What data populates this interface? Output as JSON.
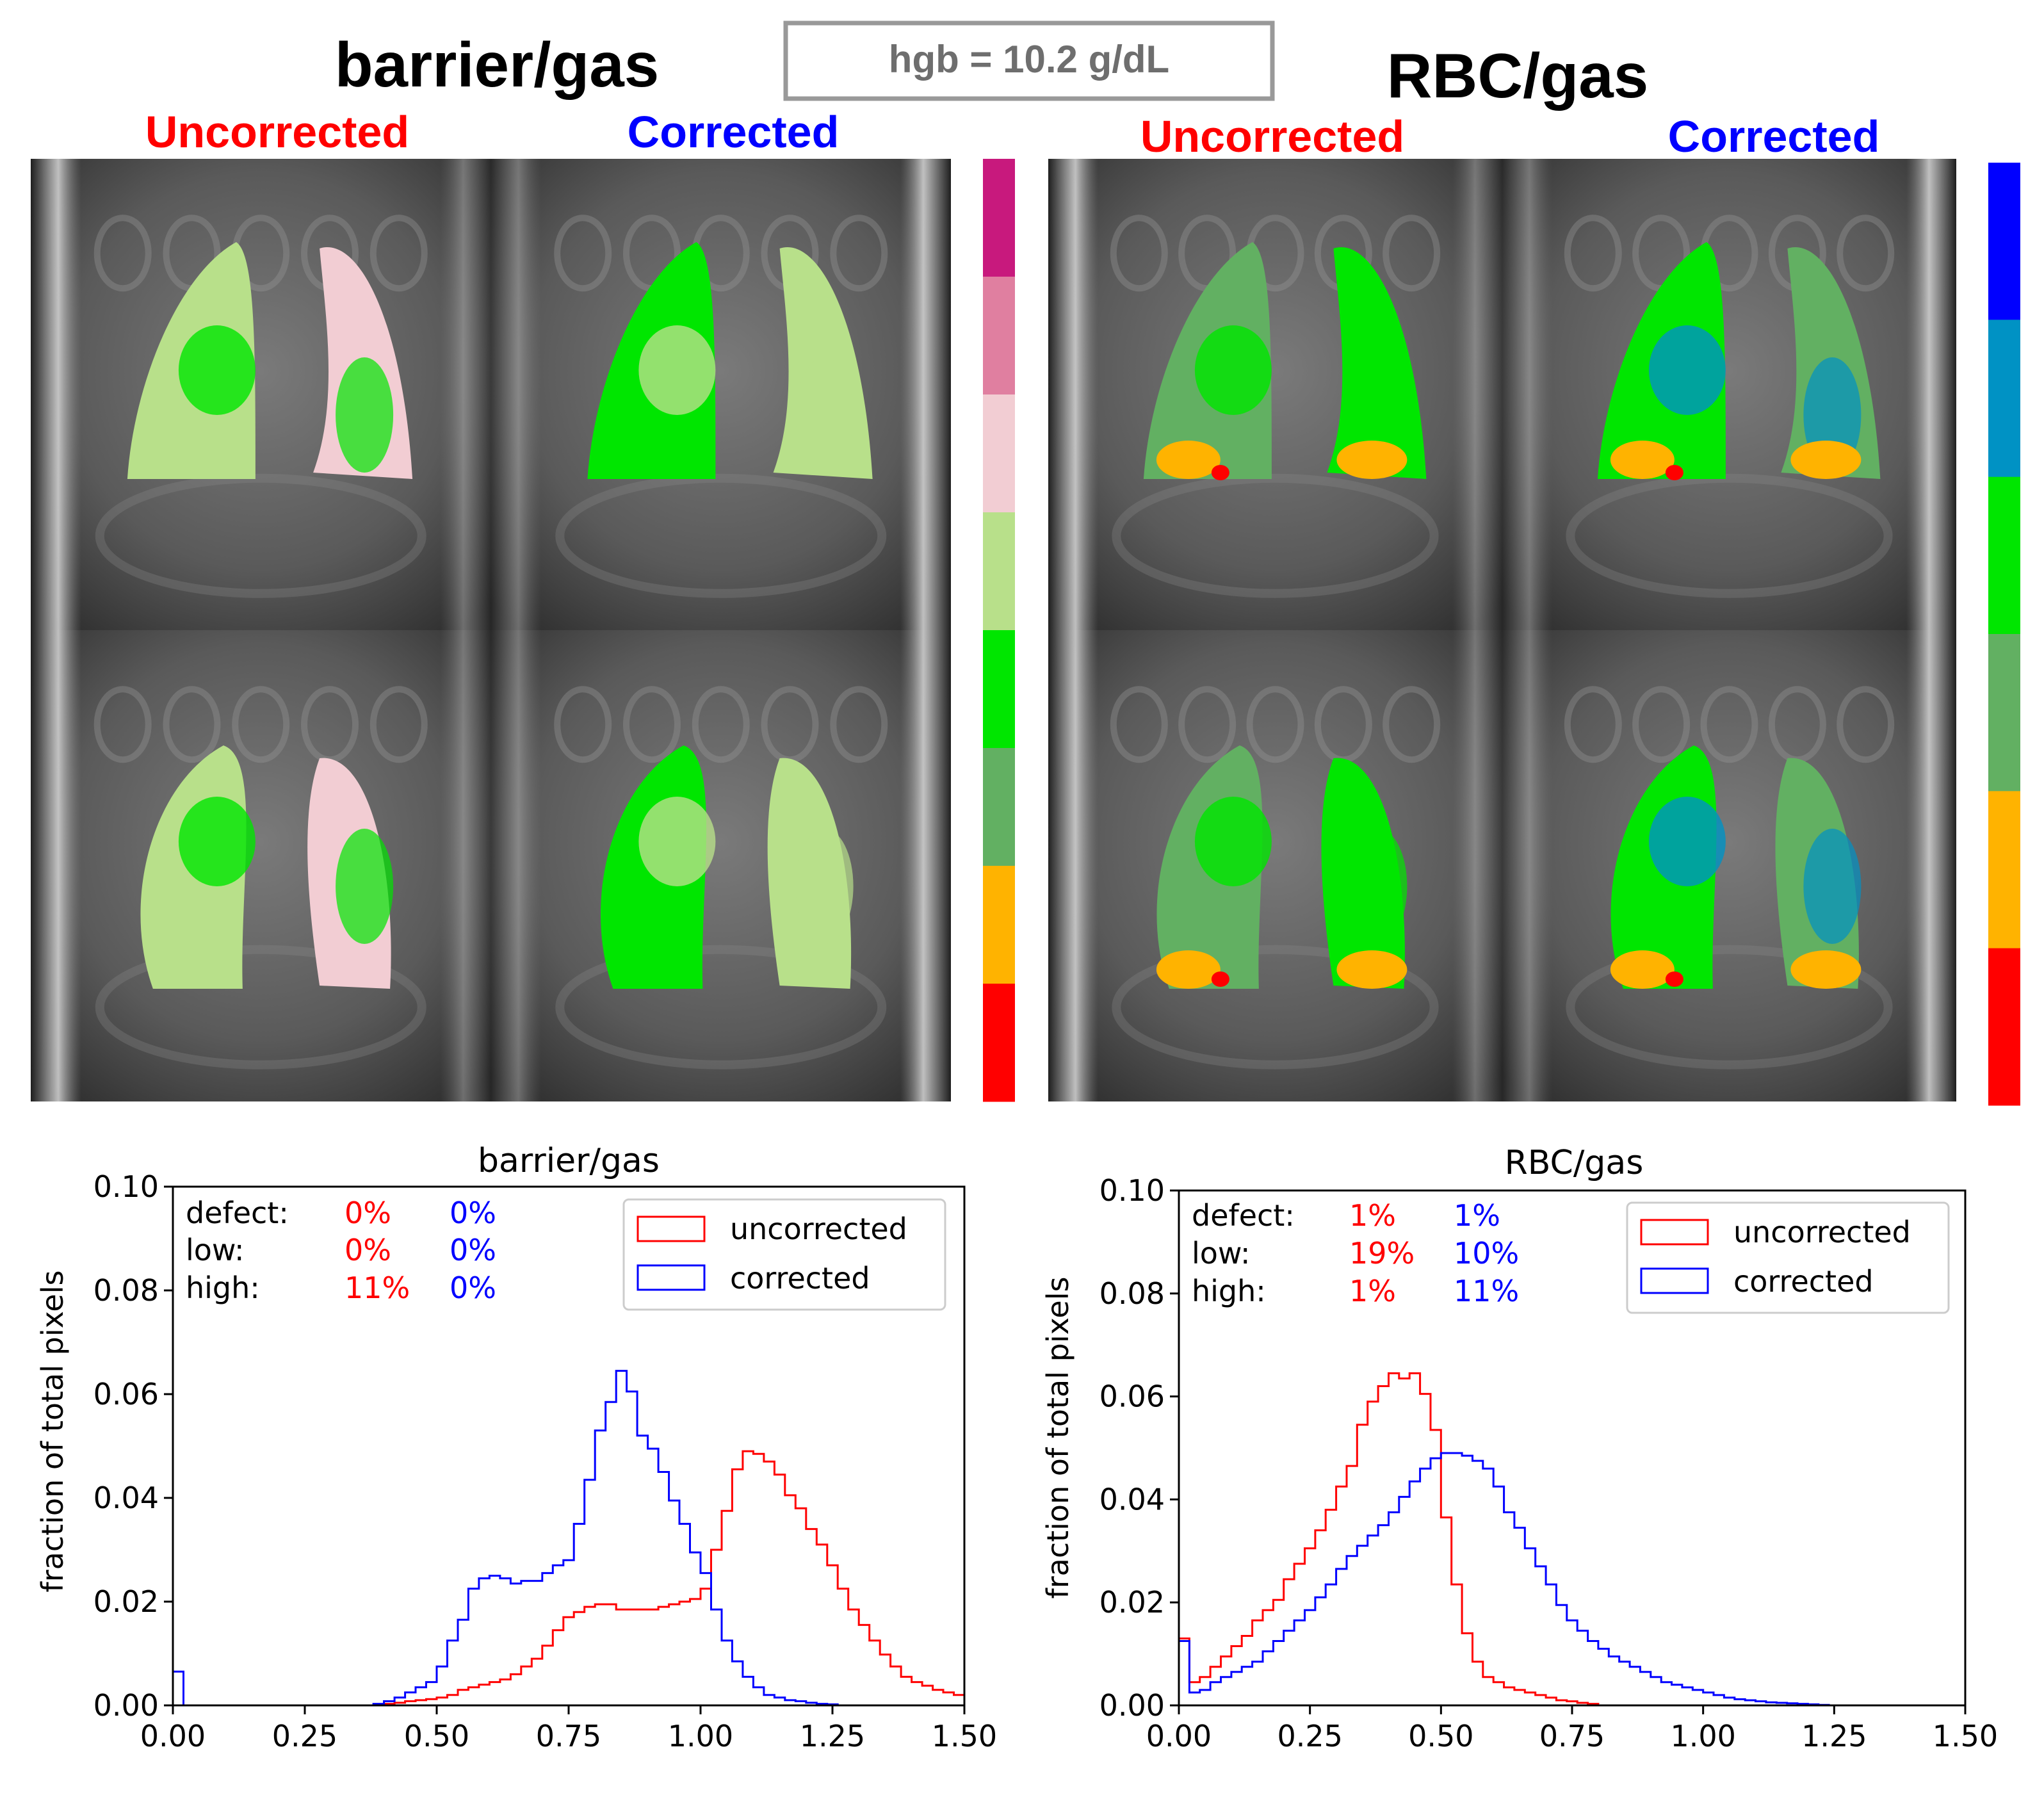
{
  "header": {
    "hgb_box": "hgb = 10.2 g/dL",
    "left_title": "barrier/gas",
    "right_title": "RBC/gas",
    "uncorrected_label": "Uncorrected",
    "corrected_label": "Corrected",
    "uncorrected_color": "#ff0000",
    "corrected_color": "#0000ff"
  },
  "colorbars": {
    "barrier": [
      "#c8197d",
      "#e07fa0",
      "#f2cdd3",
      "#b8e08a",
      "#00e600",
      "#62b062",
      "#ffb300",
      "#ff0000"
    ],
    "rbc": [
      "#0000ff",
      "#0092c4",
      "#00e600",
      "#62b062",
      "#ffb300",
      "#ff0000"
    ]
  },
  "chart_data": [
    {
      "type": "histogram",
      "title": "barrier/gas",
      "ylabel": "fraction of total pixels",
      "xlim": [
        0,
        1.5
      ],
      "ylim": [
        0,
        0.1
      ],
      "xticks": [
        "0.00",
        "0.25",
        "0.50",
        "0.75",
        "1.00",
        "1.25",
        "1.50"
      ],
      "yticks": [
        "0.00",
        "0.02",
        "0.04",
        "0.06",
        "0.08",
        "0.10"
      ],
      "stats": {
        "labels": [
          "defect:",
          "low:",
          "high:"
        ],
        "uncorrected": [
          "0%",
          "0%",
          "11%"
        ],
        "corrected": [
          "0%",
          "0%",
          "0%"
        ]
      },
      "legend": {
        "location": "top-right",
        "entries": [
          "uncorrected",
          "corrected"
        ]
      },
      "series": [
        {
          "name": "uncorrected",
          "color": "#ff0000",
          "points": [
            [
              0.0,
              0
            ],
            [
              0.38,
              0
            ],
            [
              0.4,
              0.0003
            ],
            [
              0.42,
              0.0005
            ],
            [
              0.44,
              0.0008
            ],
            [
              0.46,
              0.001
            ],
            [
              0.48,
              0.0012
            ],
            [
              0.5,
              0.0015
            ],
            [
              0.52,
              0.002
            ],
            [
              0.54,
              0.003
            ],
            [
              0.56,
              0.0035
            ],
            [
              0.58,
              0.004
            ],
            [
              0.6,
              0.0045
            ],
            [
              0.62,
              0.005
            ],
            [
              0.64,
              0.006
            ],
            [
              0.66,
              0.0075
            ],
            [
              0.68,
              0.009
            ],
            [
              0.7,
              0.0115
            ],
            [
              0.72,
              0.0145
            ],
            [
              0.74,
              0.017
            ],
            [
              0.76,
              0.018
            ],
            [
              0.78,
              0.019
            ],
            [
              0.8,
              0.0195
            ],
            [
              0.82,
              0.0195
            ],
            [
              0.84,
              0.0185
            ],
            [
              0.86,
              0.0185
            ],
            [
              0.88,
              0.0185
            ],
            [
              0.9,
              0.0185
            ],
            [
              0.92,
              0.019
            ],
            [
              0.94,
              0.0195
            ],
            [
              0.96,
              0.02
            ],
            [
              0.98,
              0.0205
            ],
            [
              1.0,
              0.0225
            ],
            [
              1.02,
              0.03
            ],
            [
              1.04,
              0.0375
            ],
            [
              1.06,
              0.0455
            ],
            [
              1.08,
              0.049
            ],
            [
              1.1,
              0.0485
            ],
            [
              1.12,
              0.047
            ],
            [
              1.14,
              0.0445
            ],
            [
              1.16,
              0.0405
            ],
            [
              1.18,
              0.038
            ],
            [
              1.2,
              0.034
            ],
            [
              1.22,
              0.031
            ],
            [
              1.24,
              0.027
            ],
            [
              1.26,
              0.0225
            ],
            [
              1.28,
              0.0185
            ],
            [
              1.3,
              0.0155
            ],
            [
              1.32,
              0.0125
            ],
            [
              1.34,
              0.0098
            ],
            [
              1.36,
              0.0075
            ],
            [
              1.38,
              0.0055
            ],
            [
              1.4,
              0.0045
            ],
            [
              1.42,
              0.0038
            ],
            [
              1.44,
              0.003
            ],
            [
              1.46,
              0.0025
            ],
            [
              1.48,
              0.002
            ],
            [
              1.5,
              0.002
            ]
          ]
        },
        {
          "name": "corrected",
          "color": "#0000ff",
          "points": [
            [
              0.0,
              0.0065
            ],
            [
              0.02,
              0
            ],
            [
              0.36,
              0
            ],
            [
              0.38,
              0.0003
            ],
            [
              0.4,
              0.0008
            ],
            [
              0.42,
              0.0015
            ],
            [
              0.44,
              0.0025
            ],
            [
              0.46,
              0.0035
            ],
            [
              0.48,
              0.0045
            ],
            [
              0.5,
              0.0075
            ],
            [
              0.52,
              0.0125
            ],
            [
              0.54,
              0.0165
            ],
            [
              0.56,
              0.0225
            ],
            [
              0.58,
              0.0245
            ],
            [
              0.6,
              0.025
            ],
            [
              0.62,
              0.0245
            ],
            [
              0.64,
              0.0235
            ],
            [
              0.66,
              0.024
            ],
            [
              0.68,
              0.024
            ],
            [
              0.7,
              0.0255
            ],
            [
              0.72,
              0.027
            ],
            [
              0.74,
              0.028
            ],
            [
              0.76,
              0.035
            ],
            [
              0.78,
              0.0435
            ],
            [
              0.8,
              0.053
            ],
            [
              0.82,
              0.0585
            ],
            [
              0.84,
              0.0645
            ],
            [
              0.86,
              0.0605
            ],
            [
              0.88,
              0.052
            ],
            [
              0.9,
              0.0495
            ],
            [
              0.92,
              0.045
            ],
            [
              0.94,
              0.0395
            ],
            [
              0.96,
              0.035
            ],
            [
              0.98,
              0.0295
            ],
            [
              1.0,
              0.0255
            ],
            [
              1.02,
              0.0185
            ],
            [
              1.04,
              0.0125
            ],
            [
              1.06,
              0.0085
            ],
            [
              1.08,
              0.0055
            ],
            [
              1.1,
              0.0035
            ],
            [
              1.12,
              0.002
            ],
            [
              1.14,
              0.0015
            ],
            [
              1.16,
              0.001
            ],
            [
              1.18,
              0.0008
            ],
            [
              1.2,
              0.0005
            ],
            [
              1.22,
              0.0003
            ],
            [
              1.24,
              0.0002
            ],
            [
              1.26,
              0
            ],
            [
              1.5,
              0
            ]
          ]
        }
      ]
    },
    {
      "type": "histogram",
      "title": "RBC/gas",
      "ylabel": "fraction of total pixels",
      "xlim": [
        0,
        1.5
      ],
      "ylim": [
        0,
        0.1
      ],
      "xticks": [
        "0.00",
        "0.25",
        "0.50",
        "0.75",
        "1.00",
        "1.25",
        "1.50"
      ],
      "yticks": [
        "0.00",
        "0.02",
        "0.04",
        "0.06",
        "0.08",
        "0.10"
      ],
      "stats": {
        "labels": [
          "defect:",
          "low:",
          "high:"
        ],
        "uncorrected": [
          "1%",
          "19%",
          "1%"
        ],
        "corrected": [
          "1%",
          "10%",
          "11%"
        ]
      },
      "legend": {
        "location": "top-right",
        "entries": [
          "uncorrected",
          "corrected"
        ]
      },
      "series": [
        {
          "name": "uncorrected",
          "color": "#ff0000",
          "points": [
            [
              0.0,
              0.013
            ],
            [
              0.02,
              0.0045
            ],
            [
              0.04,
              0.0055
            ],
            [
              0.06,
              0.0075
            ],
            [
              0.08,
              0.0095
            ],
            [
              0.1,
              0.0115
            ],
            [
              0.12,
              0.0135
            ],
            [
              0.14,
              0.0165
            ],
            [
              0.16,
              0.0185
            ],
            [
              0.18,
              0.0205
            ],
            [
              0.2,
              0.0245
            ],
            [
              0.22,
              0.0275
            ],
            [
              0.24,
              0.0305
            ],
            [
              0.26,
              0.034
            ],
            [
              0.28,
              0.038
            ],
            [
              0.3,
              0.0425
            ],
            [
              0.32,
              0.0465
            ],
            [
              0.34,
              0.0545
            ],
            [
              0.36,
              0.059
            ],
            [
              0.38,
              0.062
            ],
            [
              0.4,
              0.0645
            ],
            [
              0.42,
              0.0635
            ],
            [
              0.44,
              0.0645
            ],
            [
              0.46,
              0.0605
            ],
            [
              0.48,
              0.0535
            ],
            [
              0.5,
              0.0365
            ],
            [
              0.52,
              0.0235
            ],
            [
              0.54,
              0.014
            ],
            [
              0.56,
              0.0085
            ],
            [
              0.58,
              0.0055
            ],
            [
              0.6,
              0.0045
            ],
            [
              0.62,
              0.0035
            ],
            [
              0.64,
              0.003
            ],
            [
              0.66,
              0.0025
            ],
            [
              0.68,
              0.002
            ],
            [
              0.7,
              0.0015
            ],
            [
              0.72,
              0.001
            ],
            [
              0.74,
              0.0008
            ],
            [
              0.76,
              0.0005
            ],
            [
              0.78,
              0.0003
            ],
            [
              0.8,
              0
            ],
            [
              1.5,
              0
            ]
          ]
        },
        {
          "name": "corrected",
          "color": "#0000ff",
          "points": [
            [
              0.0,
              0.0125
            ],
            [
              0.02,
              0.0025
            ],
            [
              0.04,
              0.003
            ],
            [
              0.06,
              0.0045
            ],
            [
              0.08,
              0.0055
            ],
            [
              0.1,
              0.0065
            ],
            [
              0.12,
              0.0075
            ],
            [
              0.14,
              0.0085
            ],
            [
              0.16,
              0.0105
            ],
            [
              0.18,
              0.0125
            ],
            [
              0.2,
              0.0145
            ],
            [
              0.22,
              0.0165
            ],
            [
              0.24,
              0.0185
            ],
            [
              0.26,
              0.021
            ],
            [
              0.28,
              0.0235
            ],
            [
              0.3,
              0.0265
            ],
            [
              0.32,
              0.029
            ],
            [
              0.34,
              0.031
            ],
            [
              0.36,
              0.033
            ],
            [
              0.38,
              0.035
            ],
            [
              0.4,
              0.0375
            ],
            [
              0.42,
              0.0405
            ],
            [
              0.44,
              0.0435
            ],
            [
              0.46,
              0.046
            ],
            [
              0.48,
              0.048
            ],
            [
              0.5,
              0.049
            ],
            [
              0.52,
              0.049
            ],
            [
              0.54,
              0.0485
            ],
            [
              0.56,
              0.0475
            ],
            [
              0.58,
              0.046
            ],
            [
              0.6,
              0.0425
            ],
            [
              0.62,
              0.0375
            ],
            [
              0.64,
              0.0345
            ],
            [
              0.66,
              0.0305
            ],
            [
              0.68,
              0.027
            ],
            [
              0.7,
              0.0235
            ],
            [
              0.72,
              0.0195
            ],
            [
              0.74,
              0.0165
            ],
            [
              0.76,
              0.0145
            ],
            [
              0.78,
              0.0125
            ],
            [
              0.8,
              0.011
            ],
            [
              0.82,
              0.0095
            ],
            [
              0.84,
              0.0085
            ],
            [
              0.86,
              0.0075
            ],
            [
              0.88,
              0.0065
            ],
            [
              0.9,
              0.0055
            ],
            [
              0.92,
              0.0045
            ],
            [
              0.94,
              0.004
            ],
            [
              0.96,
              0.0035
            ],
            [
              0.98,
              0.003
            ],
            [
              1.0,
              0.0025
            ],
            [
              1.02,
              0.002
            ],
            [
              1.04,
              0.0015
            ],
            [
              1.06,
              0.0012
            ],
            [
              1.08,
              0.001
            ],
            [
              1.1,
              0.0008
            ],
            [
              1.12,
              0.0006
            ],
            [
              1.14,
              0.0005
            ],
            [
              1.16,
              0.0004
            ],
            [
              1.18,
              0.0003
            ],
            [
              1.2,
              0.0002
            ],
            [
              1.22,
              0.0001
            ],
            [
              1.24,
              0
            ],
            [
              1.5,
              0
            ]
          ]
        }
      ]
    }
  ]
}
